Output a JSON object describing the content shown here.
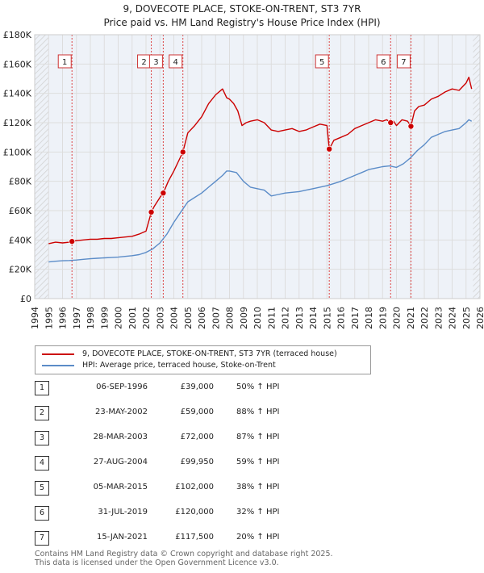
{
  "chart_data": {
    "type": "line",
    "title": "9, DOVECOTE PLACE, STOKE-ON-TRENT, ST3 7YR",
    "subtitle": "Price paid vs. HM Land Registry's House Price Index (HPI)",
    "xlabel": "",
    "ylabel": "",
    "xlim": [
      1994,
      2026
    ],
    "ylim": [
      0,
      180000
    ],
    "x_ticks": [
      1994,
      1995,
      1996,
      1997,
      1998,
      1999,
      2000,
      2001,
      2002,
      2003,
      2004,
      2005,
      2006,
      2007,
      2008,
      2009,
      2010,
      2011,
      2012,
      2013,
      2014,
      2015,
      2016,
      2017,
      2018,
      2019,
      2020,
      2021,
      2022,
      2023,
      2024,
      2025,
      2026
    ],
    "y_ticks": [
      0,
      20000,
      40000,
      60000,
      80000,
      100000,
      120000,
      140000,
      160000,
      180000
    ],
    "y_tick_labels": [
      "£0",
      "£20K",
      "£40K",
      "£60K",
      "£80K",
      "£100K",
      "£120K",
      "£140K",
      "£160K",
      "£180K"
    ],
    "grid": true,
    "series": [
      {
        "name": "9, DOVECOTE PLACE, STOKE-ON-TRENT, ST3 7YR (terraced house)",
        "color": "#cc0000",
        "x": [
          1995.0,
          1995.5,
          1996.0,
          1996.5,
          1996.68,
          1997.0,
          1997.5,
          1998.0,
          1998.5,
          1999.0,
          1999.5,
          2000.0,
          2000.5,
          2001.0,
          2001.5,
          2002.0,
          2002.38,
          2002.6,
          2003.0,
          2003.24,
          2003.6,
          2004.0,
          2004.3,
          2004.65,
          2005.0,
          2005.5,
          2006.0,
          2006.5,
          2007.0,
          2007.5,
          2007.8,
          2008.0,
          2008.3,
          2008.6,
          2008.9,
          2009.2,
          2009.5,
          2010.0,
          2010.5,
          2011.0,
          2011.5,
          2012.0,
          2012.5,
          2013.0,
          2013.5,
          2014.0,
          2014.5,
          2015.0,
          2015.17,
          2015.5,
          2016.0,
          2016.5,
          2017.0,
          2017.5,
          2018.0,
          2018.5,
          2019.0,
          2019.3,
          2019.58,
          2019.8,
          2020.0,
          2020.4,
          2020.8,
          2021.04,
          2021.3,
          2021.6,
          2022.0,
          2022.5,
          2023.0,
          2023.5,
          2024.0,
          2024.5,
          2025.0,
          2025.2,
          2025.4
        ],
        "values": [
          37500,
          38500,
          38000,
          38500,
          39000,
          39500,
          40000,
          40500,
          40500,
          41000,
          41000,
          41500,
          42000,
          42500,
          44000,
          46000,
          59000,
          63000,
          69000,
          72000,
          80000,
          87000,
          93000,
          99950,
          113000,
          118000,
          124000,
          133000,
          139000,
          143000,
          137000,
          136000,
          133000,
          128000,
          118000,
          120000,
          121000,
          122000,
          120000,
          115000,
          114000,
          115000,
          116000,
          114000,
          115000,
          117000,
          119000,
          118000,
          102000,
          108000,
          110000,
          112000,
          116000,
          118000,
          120000,
          122000,
          121000,
          122000,
          120000,
          121000,
          118000,
          122000,
          121000,
          117500,
          128000,
          131000,
          132000,
          136000,
          138000,
          141000,
          143000,
          142000,
          147000,
          151000,
          143000
        ]
      },
      {
        "name": "HPI: Average price, terraced house, Stoke-on-Trent",
        "color": "#5b8cc8",
        "x": [
          1995.0,
          1995.5,
          1996.0,
          1996.5,
          1997.0,
          1997.5,
          1998.0,
          1998.5,
          1999.0,
          1999.5,
          2000.0,
          2000.5,
          2001.0,
          2001.5,
          2002.0,
          2002.5,
          2003.0,
          2003.5,
          2004.0,
          2004.5,
          2005.0,
          2005.5,
          2006.0,
          2006.5,
          2007.0,
          2007.5,
          2007.8,
          2008.0,
          2008.5,
          2009.0,
          2009.5,
          2010.0,
          2010.5,
          2011.0,
          2011.5,
          2012.0,
          2012.5,
          2013.0,
          2013.5,
          2014.0,
          2014.5,
          2015.0,
          2015.5,
          2016.0,
          2016.5,
          2017.0,
          2017.5,
          2018.0,
          2018.5,
          2019.0,
          2019.5,
          2020.0,
          2020.5,
          2021.0,
          2021.5,
          2022.0,
          2022.5,
          2023.0,
          2023.5,
          2024.0,
          2024.5,
          2025.0,
          2025.2,
          2025.4
        ],
        "values": [
          25000,
          25500,
          25800,
          26000,
          26300,
          26800,
          27200,
          27500,
          27800,
          28000,
          28300,
          28800,
          29300,
          30000,
          31500,
          34000,
          38000,
          44000,
          52000,
          59000,
          66000,
          69000,
          72000,
          76000,
          80000,
          84000,
          87000,
          87000,
          86000,
          80000,
          76000,
          75000,
          74000,
          70000,
          71000,
          72000,
          72500,
          73000,
          74000,
          75000,
          76000,
          77000,
          78500,
          80000,
          82000,
          84000,
          86000,
          88000,
          89000,
          90000,
          90500,
          89500,
          92000,
          96000,
          101000,
          105000,
          110000,
          112000,
          114000,
          115000,
          116000,
          120000,
          122000,
          121000
        ]
      }
    ],
    "sales": [
      {
        "id": "1",
        "x": 1996.68,
        "value": 39000
      },
      {
        "id": "2",
        "x": 2002.38,
        "value": 59000
      },
      {
        "id": "3",
        "x": 2003.24,
        "value": 72000
      },
      {
        "id": "4",
        "x": 2004.65,
        "value": 99950
      },
      {
        "id": "5",
        "x": 2015.17,
        "value": 102000
      },
      {
        "id": "6",
        "x": 2019.58,
        "value": 120000
      },
      {
        "id": "7",
        "x": 2021.04,
        "value": 117500
      }
    ],
    "legend": [
      {
        "label": "9, DOVECOTE PLACE, STOKE-ON-TRENT, ST3 7YR (terraced house)",
        "color": "#cc0000"
      },
      {
        "label": "HPI: Average price, terraced house, Stoke-on-Trent",
        "color": "#5b8cc8"
      }
    ]
  },
  "sales_table": [
    {
      "num": "1",
      "date": "06-SEP-1996",
      "price": "£39,000",
      "hpi": "50% ↑ HPI"
    },
    {
      "num": "2",
      "date": "23-MAY-2002",
      "price": "£59,000",
      "hpi": "88% ↑ HPI"
    },
    {
      "num": "3",
      "date": "28-MAR-2003",
      "price": "£72,000",
      "hpi": "87% ↑ HPI"
    },
    {
      "num": "4",
      "date": "27-AUG-2004",
      "price": "£99,950",
      "hpi": "59% ↑ HPI"
    },
    {
      "num": "5",
      "date": "05-MAR-2015",
      "price": "£102,000",
      "hpi": "38% ↑ HPI"
    },
    {
      "num": "6",
      "date": "31-JUL-2019",
      "price": "£120,000",
      "hpi": "32% ↑ HPI"
    },
    {
      "num": "7",
      "date": "15-JAN-2021",
      "price": "£117,500",
      "hpi": "20% ↑ HPI"
    }
  ],
  "footer": {
    "line1": "Contains HM Land Registry data © Crown copyright and database right 2025.",
    "line2": "This data is licensed under the Open Government Licence v3.0."
  },
  "colors": {
    "price": "#cc0000",
    "hpi": "#5b8cc8",
    "grid": "#dddddd",
    "plot_bg": "#eef2f8",
    "hatch": "#d8d8d8"
  }
}
